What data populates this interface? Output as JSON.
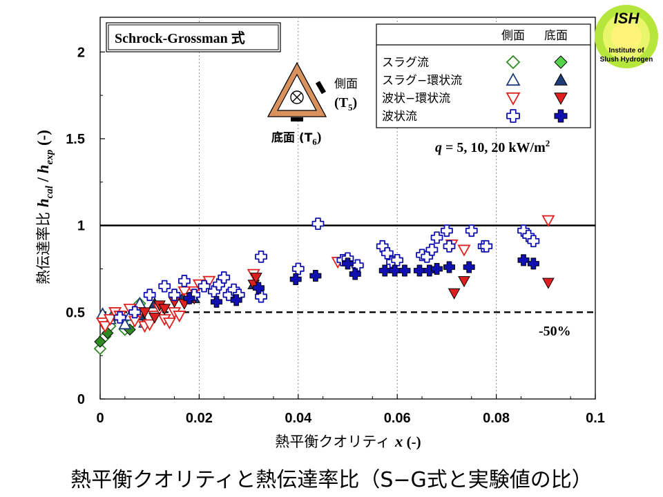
{
  "caption": "熱平衡クオリティと熱伝達率比（S−G式と実験値の比）",
  "logo": {
    "name": "ISH",
    "line1": "Institute of",
    "line2": "Slush Hydrogen"
  },
  "chart_data": {
    "type": "scatter",
    "title_box": "Schrock-Grossman 式",
    "xlabel_prefix": "熱平衡クオリティ ",
    "xlabel_var": "x",
    "xlabel_suffix": " (-)",
    "ylabel_prefix": "熱伝達率比  ",
    "ylabel_h1": "h",
    "ylabel_s1": "cal",
    "ylabel_slash": " / ",
    "ylabel_h2": "h",
    "ylabel_s2": "exp",
    "ylabel_suffix": " (-)",
    "xlim": [
      0,
      0.1
    ],
    "ylim": [
      0,
      2.2
    ],
    "xticks": [
      0,
      0.02,
      0.04,
      0.06,
      0.08,
      0.1
    ],
    "xtick_labels": [
      "0",
      "0.02",
      "0.04",
      "0.06",
      "0.08",
      "0.1"
    ],
    "yticks": [
      0,
      0.5,
      1,
      1.5,
      2
    ],
    "ytick_labels": [
      "0",
      "0.5",
      "1",
      "1.5",
      "2"
    ],
    "grid": "vertical dotted",
    "ref_lines": [
      {
        "y": 1.0,
        "style": "solid"
      },
      {
        "y": 0.5,
        "style": "dashed",
        "label": "-50%"
      }
    ],
    "condition_q": "q",
    "condition_values": " = 5, 10, 20 kW/m",
    "condition_sup": "2",
    "sensor": {
      "side_label": "側面",
      "side_sensor": "(T",
      "side_sub": "5",
      "close": ")",
      "bottom_label": "底面 (T",
      "bottom_sub": "6"
    },
    "legend": {
      "position": "top-right",
      "col_side": "側面",
      "col_bottom": "底面",
      "rows": [
        {
          "label": "スラグ流",
          "marker": "diamond",
          "color": "#2e8b22",
          "fill": "#55d44a"
        },
        {
          "label": "スラグ−環状流",
          "marker": "triangle-up",
          "color": "#1f3c78",
          "fill": "#1f3c78"
        },
        {
          "label": "波状−環状流",
          "marker": "triangle-down",
          "color": "#e02020",
          "fill": "#e02020"
        },
        {
          "label": "波状流",
          "marker": "cross",
          "color": "#1010b0",
          "fill": "#1010b0"
        }
      ]
    },
    "series": [
      {
        "name": "スラグ流 側面",
        "marker": "diamond",
        "filled": false,
        "color": "#2e8b22",
        "x": [
          0.0,
          0.001,
          0.002,
          0.003,
          0.005,
          0.006,
          0.007,
          0.008
        ],
        "y": [
          0.29,
          0.36,
          0.42,
          0.48,
          0.4,
          0.43,
          0.52,
          0.55
        ]
      },
      {
        "name": "スラグ流 底面",
        "marker": "diamond",
        "filled": true,
        "color": "#2e8b22",
        "fill": "#2e8b22",
        "x": [
          0.0,
          0.0015,
          0.006
        ],
        "y": [
          0.33,
          0.38,
          0.4
        ]
      },
      {
        "name": "スラグ−環状流 側面",
        "marker": "triangle-up",
        "filled": false,
        "color": "#1f3c78",
        "x": [
          0.0005,
          0.002,
          0.005,
          0.006,
          0.008,
          0.009
        ],
        "y": [
          0.49,
          0.46,
          0.43,
          0.48,
          0.55,
          0.44
        ]
      },
      {
        "name": "スラグ−環状流 底面",
        "marker": "triangle-up",
        "filled": true,
        "color": "#1f3c78",
        "fill": "#1f3c78",
        "x": [
          0.008,
          0.011,
          0.017,
          0.019,
          0.031
        ],
        "y": [
          0.48,
          0.55,
          0.6,
          0.58,
          0.66
        ]
      },
      {
        "name": "波状−環状流 側面",
        "marker": "triangle-down",
        "filled": false,
        "color": "#e02020",
        "x": [
          0.0005,
          0.001,
          0.002,
          0.003,
          0.004,
          0.006,
          0.007,
          0.008,
          0.009,
          0.01,
          0.011,
          0.012,
          0.013,
          0.014,
          0.015,
          0.016,
          0.017,
          0.018,
          0.019,
          0.02,
          0.022,
          0.031,
          0.048,
          0.071,
          0.0735,
          0.0905
        ],
        "y": [
          0.44,
          0.42,
          0.46,
          0.5,
          0.48,
          0.52,
          0.45,
          0.5,
          0.42,
          0.43,
          0.48,
          0.52,
          0.46,
          0.44,
          0.5,
          0.48,
          0.62,
          0.58,
          0.62,
          0.66,
          0.68,
          0.72,
          0.79,
          0.89,
          0.86,
          1.03
        ]
      },
      {
        "name": "波状−環状流 底面",
        "marker": "triangle-down",
        "filled": true,
        "color": "#e02020",
        "fill": "#e02020",
        "x": [
          0.009,
          0.011,
          0.012,
          0.013,
          0.015,
          0.017,
          0.019,
          0.031,
          0.0315,
          0.0715,
          0.0735,
          0.0905
        ],
        "y": [
          0.5,
          0.47,
          0.54,
          0.52,
          0.56,
          0.55,
          0.58,
          0.66,
          0.7,
          0.61,
          0.68,
          0.67
        ]
      },
      {
        "name": "波状流 側面",
        "marker": "cross",
        "filled": false,
        "color": "#1010b0",
        "x": [
          0.004,
          0.007,
          0.01,
          0.013,
          0.015,
          0.017,
          0.019,
          0.021,
          0.023,
          0.024,
          0.025,
          0.026,
          0.027,
          0.028,
          0.0325,
          0.0325,
          0.04,
          0.044,
          0.049,
          0.05,
          0.052,
          0.057,
          0.058,
          0.059,
          0.06,
          0.065,
          0.066,
          0.067,
          0.068,
          0.07,
          0.0705,
          0.075,
          0.0775,
          0.078,
          0.0855,
          0.0865,
          0.0875
        ],
        "y": [
          0.47,
          0.5,
          0.6,
          0.65,
          0.6,
          0.68,
          0.6,
          0.65,
          0.62,
          0.66,
          0.7,
          0.6,
          0.63,
          0.6,
          0.82,
          0.59,
          0.75,
          1.01,
          0.8,
          0.81,
          0.77,
          0.88,
          0.84,
          0.79,
          0.8,
          0.83,
          0.82,
          0.86,
          0.93,
          0.97,
          0.88,
          0.97,
          0.88,
          0.88,
          0.97,
          0.94,
          0.91
        ]
      },
      {
        "name": "波状流 底面",
        "marker": "cross",
        "filled": true,
        "color": "#1010b0",
        "fill": "#1010b0",
        "x": [
          0.018,
          0.0235,
          0.0275,
          0.032,
          0.0395,
          0.0435,
          0.05,
          0.0515,
          0.0575,
          0.0595,
          0.0615,
          0.0645,
          0.0665,
          0.068,
          0.0705,
          0.0745,
          0.0855,
          0.0875
        ],
        "y": [
          0.58,
          0.56,
          0.57,
          0.64,
          0.69,
          0.71,
          0.78,
          0.72,
          0.74,
          0.74,
          0.74,
          0.74,
          0.74,
          0.75,
          0.76,
          0.76,
          0.8,
          0.78
        ]
      }
    ]
  }
}
